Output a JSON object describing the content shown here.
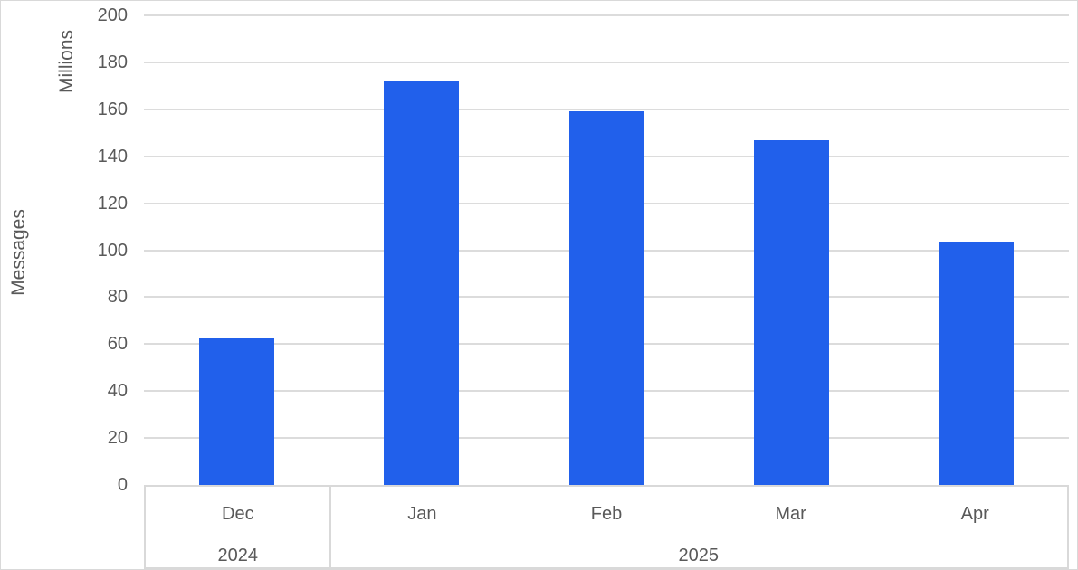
{
  "theme": {
    "bar_color": "#2160EB",
    "gridline_color": "#DCDCDC",
    "border_color": "#D9D9D9",
    "text_color": "#595959",
    "background_color": "#FFFFFF"
  },
  "chart_data": {
    "type": "bar",
    "title": "",
    "xlabel": "",
    "ylabel": "Messages",
    "y_units_label": "Millions",
    "categories": [
      "Dec",
      "Jan",
      "Feb",
      "Mar",
      "Apr"
    ],
    "values": [
      62.5,
      172,
      159,
      147,
      103.5
    ],
    "series_name": "Messages",
    "year_groups": [
      {
        "label": "2024",
        "span": 1
      },
      {
        "label": "2025",
        "span": 4
      }
    ],
    "ylim": [
      0,
      200
    ],
    "yticks": [
      0,
      20,
      40,
      60,
      80,
      100,
      120,
      140,
      160,
      180,
      200
    ],
    "grid": true,
    "legend": "none"
  }
}
